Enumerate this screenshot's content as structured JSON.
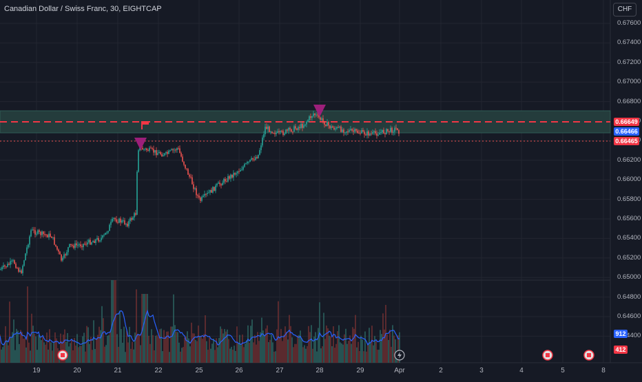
{
  "chart": {
    "title": "Canadian Dollar / Swiss Franc, 30, EIGHTCAP",
    "currency_button": "CHF",
    "price_ticks": [
      "0.67600",
      "0.67400",
      "0.67200",
      "0.67000",
      "0.66800",
      "0.66600",
      "0.66400",
      "0.66200",
      "0.66000",
      "0.65800",
      "0.65600",
      "0.65400",
      "0.65200",
      "0.65000",
      "0.64800",
      "0.64600",
      "0.64400"
    ],
    "date_ticks": [
      "19",
      "20",
      "21",
      "22",
      "25",
      "26",
      "27",
      "28",
      "29",
      "Apr",
      "2",
      "3",
      "4",
      "5",
      "8"
    ],
    "badges": {
      "resistance_price": "0.66649",
      "current_price_blue": "0.66466",
      "current_price_red": "0.66465",
      "volume_blue": "912",
      "volume_red": "412"
    },
    "colors": {
      "background": "#161a25",
      "bull": "#26a69a",
      "bear": "#ef5350",
      "zone_fill": "#243c3c",
      "dashed_line": "#f23645",
      "marker": "#9c1f7a",
      "volume_ma": "#2962ff",
      "grid": "#232631"
    },
    "icons": [
      "flag-icon",
      "sell-marker-icon",
      "canada-flag-icon",
      "lightning-icon"
    ]
  },
  "chart_data": {
    "type": "candlestick",
    "symbol": "CADCHF",
    "interval": "30",
    "ylim": [
      0.6438,
      0.677
    ],
    "resistance_level": 0.66649,
    "resistance_zone": [
      0.6656,
      0.6676
    ],
    "last_price": 0.66465,
    "approx_close_path": [
      {
        "x": "19",
        "y": 0.6525
      },
      {
        "x": "19.5",
        "y": 0.6562
      },
      {
        "x": "20",
        "y": 0.6555
      },
      {
        "x": "20.7",
        "y": 0.6565
      },
      {
        "x": "21",
        "y": 0.658
      },
      {
        "x": "21.5",
        "y": 0.6588
      },
      {
        "x": "21.6",
        "y": 0.6642
      },
      {
        "x": "22",
        "y": 0.6635
      },
      {
        "x": "22.5",
        "y": 0.662
      },
      {
        "x": "25",
        "y": 0.6588
      },
      {
        "x": "26",
        "y": 0.6625
      },
      {
        "x": "26.6",
        "y": 0.6668
      },
      {
        "x": "27",
        "y": 0.665
      },
      {
        "x": "28",
        "y": 0.6668
      },
      {
        "x": "29",
        "y": 0.665
      },
      {
        "x": "Apr",
        "y": 0.66465
      }
    ]
  }
}
